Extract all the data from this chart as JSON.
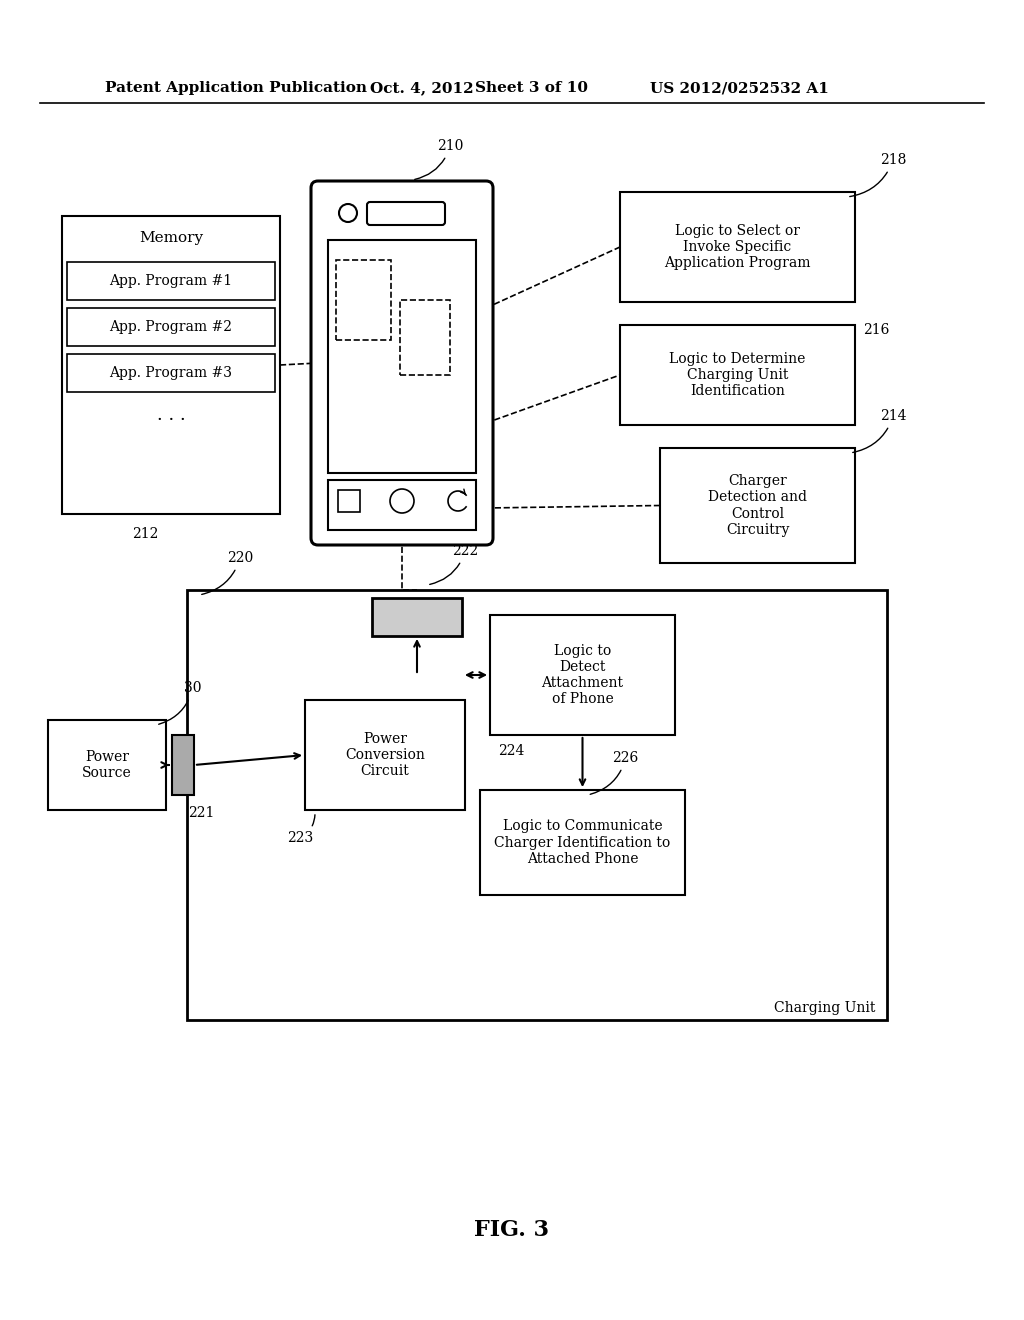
{
  "bg_color": "#ffffff",
  "header_text": "Patent Application Publication",
  "header_date": "Oct. 4, 2012",
  "header_sheet": "Sheet 3 of 10",
  "header_patent": "US 2012/0252532 A1",
  "fig_label": "FIG. 3",
  "label_210": "210",
  "label_212": "212",
  "label_214": "214",
  "label_216": "216",
  "label_218": "218",
  "label_220": "220",
  "label_221": "221",
  "label_222": "222",
  "label_223": "223",
  "label_224": "224",
  "label_226": "226",
  "label_30": "30",
  "memory_title": "Memory",
  "memory_items": [
    "App. Program #1",
    "App. Program #2",
    "App. Program #3"
  ],
  "box218_text": "Logic to Select or\nInvoke Specific\nApplication Program",
  "box216_text": "Logic to Determine\nCharging Unit\nIdentification",
  "box214_text": "Charger\nDetection and\nControl\nCircuitry",
  "box224_text": "Logic to\nDetect\nAttachment\nof Phone",
  "box223_text": "Power\nConversion\nCircuit",
  "box226_text": "Logic to Communicate\nCharger Identification to\nAttached Phone",
  "power_source_text": "Power\nSource",
  "charging_unit_text": "Charging Unit"
}
